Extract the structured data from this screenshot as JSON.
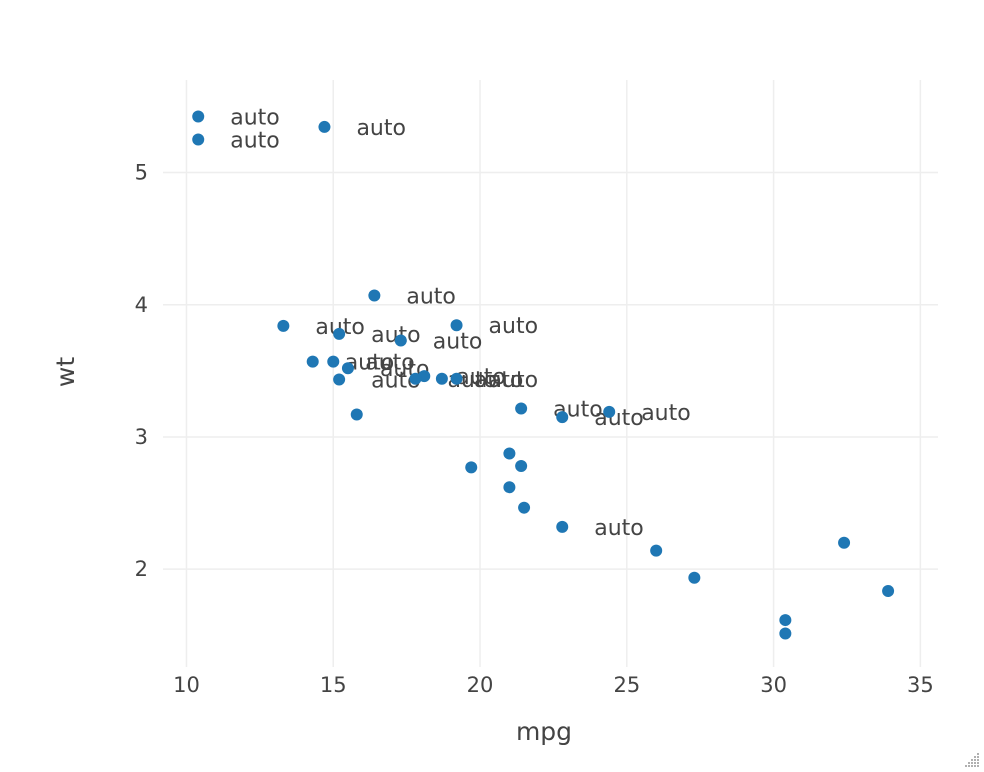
{
  "chart_data": {
    "type": "scatter",
    "xlabel": "mpg",
    "ylabel": "wt",
    "xlim": [
      9.2,
      35.6
    ],
    "ylim": [
      1.26,
      5.7
    ],
    "x_ticks": [
      "10",
      "15",
      "20",
      "25",
      "30",
      "35"
    ],
    "y_ticks": [
      "2",
      "3",
      "4",
      "5"
    ],
    "grid": true,
    "marker_color": "#1f77b4",
    "points": [
      {
        "x": 21.0,
        "y": 2.62,
        "label": ""
      },
      {
        "x": 21.0,
        "y": 2.875,
        "label": ""
      },
      {
        "x": 22.8,
        "y": 2.32,
        "label": "auto"
      },
      {
        "x": 21.4,
        "y": 3.215,
        "label": "auto"
      },
      {
        "x": 18.7,
        "y": 3.44,
        "label": "auto"
      },
      {
        "x": 18.1,
        "y": 3.46,
        "label": "auto"
      },
      {
        "x": 14.3,
        "y": 3.57,
        "label": "auto"
      },
      {
        "x": 24.4,
        "y": 3.19,
        "label": "auto"
      },
      {
        "x": 22.8,
        "y": 3.15,
        "label": "auto"
      },
      {
        "x": 19.2,
        "y": 3.44,
        "label": "auto"
      },
      {
        "x": 17.8,
        "y": 3.44,
        "label": "auto"
      },
      {
        "x": 16.4,
        "y": 4.07,
        "label": "auto"
      },
      {
        "x": 17.3,
        "y": 3.73,
        "label": "auto"
      },
      {
        "x": 15.2,
        "y": 3.78,
        "label": "auto"
      },
      {
        "x": 10.4,
        "y": 5.25,
        "label": "auto"
      },
      {
        "x": 10.4,
        "y": 5.424,
        "label": "auto"
      },
      {
        "x": 14.7,
        "y": 5.345,
        "label": "auto"
      },
      {
        "x": 32.4,
        "y": 2.2,
        "label": ""
      },
      {
        "x": 30.4,
        "y": 1.615,
        "label": ""
      },
      {
        "x": 33.9,
        "y": 1.835,
        "label": ""
      },
      {
        "x": 21.5,
        "y": 2.465,
        "label": ""
      },
      {
        "x": 15.5,
        "y": 3.52,
        "label": "auto"
      },
      {
        "x": 15.2,
        "y": 3.435,
        "label": "auto"
      },
      {
        "x": 13.3,
        "y": 3.84,
        "label": "auto"
      },
      {
        "x": 19.2,
        "y": 3.845,
        "label": "auto"
      },
      {
        "x": 27.3,
        "y": 1.935,
        "label": ""
      },
      {
        "x": 26.0,
        "y": 2.14,
        "label": ""
      },
      {
        "x": 30.4,
        "y": 1.513,
        "label": ""
      },
      {
        "x": 15.8,
        "y": 3.17,
        "label": ""
      },
      {
        "x": 19.7,
        "y": 2.77,
        "label": ""
      },
      {
        "x": 15.0,
        "y": 3.57,
        "label": "auto"
      },
      {
        "x": 21.4,
        "y": 2.78,
        "label": ""
      }
    ]
  }
}
